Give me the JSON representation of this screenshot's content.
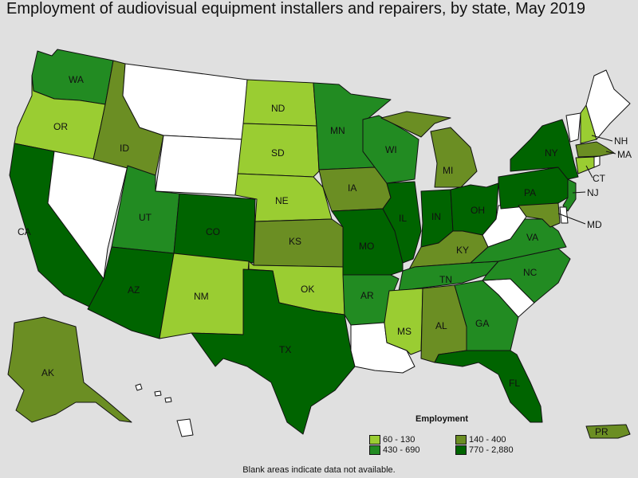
{
  "title": "Employment of audiovisual equipment installers and repairers, by state, May 2019",
  "colors": {
    "c1": "#9acd32",
    "c2": "#6b8e23",
    "c3": "#228b22",
    "c4": "#006400",
    "none": "#ffffff"
  },
  "legend": {
    "title": "Employment",
    "items": [
      {
        "label": "60 - 130",
        "class": "c1"
      },
      {
        "label": "140 - 400",
        "class": "c2"
      },
      {
        "label": "430 - 690",
        "class": "c3"
      },
      {
        "label": "770 - 2,880",
        "class": "c4"
      }
    ]
  },
  "note": "Blank areas indicate data not available.",
  "states": {
    "WA": {
      "label": "WA",
      "class": "c3"
    },
    "OR": {
      "label": "OR",
      "class": "c1"
    },
    "CA": {
      "label": "CA",
      "class": "c4"
    },
    "NV": {
      "label": "",
      "class": "none"
    },
    "ID": {
      "label": "ID",
      "class": "c2"
    },
    "MT": {
      "label": "",
      "class": "none"
    },
    "WY": {
      "label": "",
      "class": "none"
    },
    "UT": {
      "label": "UT",
      "class": "c3"
    },
    "AZ": {
      "label": "AZ",
      "class": "c4"
    },
    "CO": {
      "label": "CO",
      "class": "c4"
    },
    "NM": {
      "label": "NM",
      "class": "c1"
    },
    "ND": {
      "label": "ND",
      "class": "c1"
    },
    "SD": {
      "label": "SD",
      "class": "c1"
    },
    "NE": {
      "label": "NE",
      "class": "c1"
    },
    "KS": {
      "label": "KS",
      "class": "c2"
    },
    "OK": {
      "label": "OK",
      "class": "c1"
    },
    "TX": {
      "label": "TX",
      "class": "c4"
    },
    "MN": {
      "label": "MN",
      "class": "c3"
    },
    "IA": {
      "label": "IA",
      "class": "c2"
    },
    "MO": {
      "label": "MO",
      "class": "c4"
    },
    "AR": {
      "label": "AR",
      "class": "c3"
    },
    "LA": {
      "label": "",
      "class": "none"
    },
    "WI": {
      "label": "WI",
      "class": "c3"
    },
    "IL": {
      "label": "IL",
      "class": "c4"
    },
    "MI": {
      "label": "MI",
      "class": "c2"
    },
    "IN": {
      "label": "IN",
      "class": "c4"
    },
    "OH": {
      "label": "OH",
      "class": "c4"
    },
    "KY": {
      "label": "KY",
      "class": "c2"
    },
    "TN": {
      "label": "TN",
      "class": "c3"
    },
    "MS": {
      "label": "MS",
      "class": "c1"
    },
    "AL": {
      "label": "AL",
      "class": "c2"
    },
    "GA": {
      "label": "GA",
      "class": "c3"
    },
    "FL": {
      "label": "FL",
      "class": "c4"
    },
    "SC": {
      "label": "",
      "class": "none"
    },
    "NC": {
      "label": "NC",
      "class": "c3"
    },
    "VA": {
      "label": "VA",
      "class": "c3"
    },
    "WV": {
      "label": "",
      "class": "none"
    },
    "PA": {
      "label": "PA",
      "class": "c4"
    },
    "NY": {
      "label": "NY",
      "class": "c4"
    },
    "VT": {
      "label": "",
      "class": "none"
    },
    "NH": {
      "label": "NH",
      "class": "c1"
    },
    "ME": {
      "label": "",
      "class": "none"
    },
    "MA": {
      "label": "MA",
      "class": "c2"
    },
    "CT": {
      "label": "CT",
      "class": "c1"
    },
    "RI": {
      "label": "",
      "class": "none"
    },
    "NJ": {
      "label": "NJ",
      "class": "c3"
    },
    "DE": {
      "label": "",
      "class": "none"
    },
    "MD": {
      "label": "MD",
      "class": "c2"
    },
    "AK": {
      "label": "AK",
      "class": "c2"
    },
    "HI": {
      "label": "",
      "class": "none"
    },
    "PR": {
      "label": "PR",
      "class": "c2"
    }
  }
}
